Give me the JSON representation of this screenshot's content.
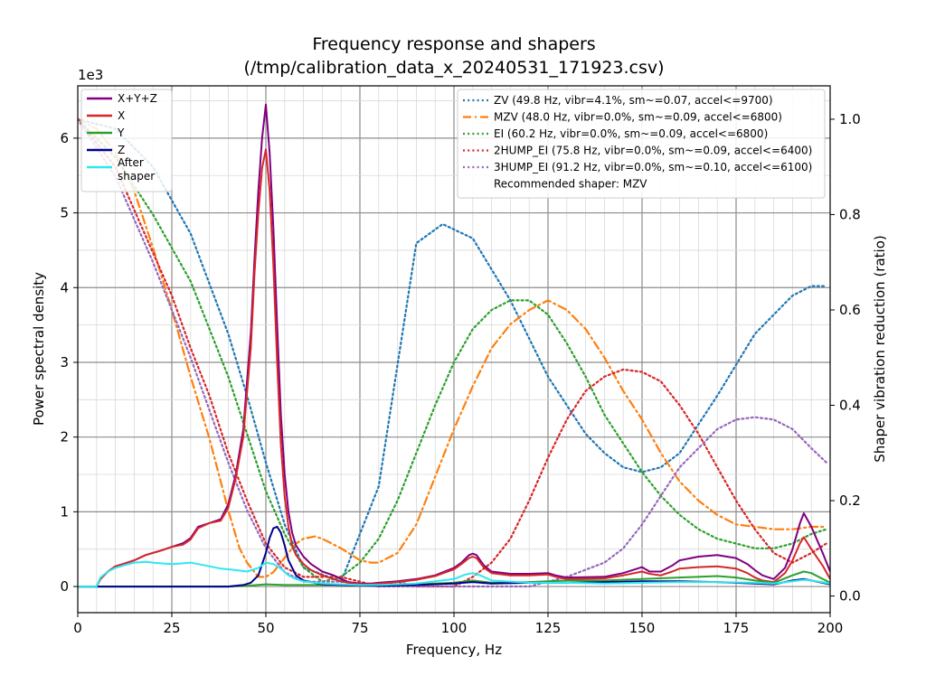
{
  "chart_data": {
    "type": "line",
    "title": "Frequency response and shapers",
    "subtitle": "(/tmp/calibration_data_x_20240531_171923.csv)",
    "xlabel": "Frequency, Hz",
    "ylabel": "Power spectral density",
    "ylabel_right": "Shaper vibration reduction (ratio)",
    "y_multiplier": "1e3",
    "xlim": [
      0,
      200
    ],
    "ylim": [
      -0.35,
      6.7
    ],
    "ylim_right": [
      -0.035,
      1.07
    ],
    "x_ticks": [
      0,
      25,
      50,
      75,
      100,
      125,
      150,
      175,
      200
    ],
    "y_ticks": [
      0,
      1,
      2,
      3,
      4,
      5,
      6
    ],
    "y_ticks_right": [
      0.0,
      0.2,
      0.4,
      0.6,
      0.8,
      1.0
    ],
    "grid": true,
    "legend_left_placement": "top-left",
    "legend_right_placement": "top-right",
    "recommended_note": "Recommended shaper: MZV",
    "psd_series": [
      {
        "name": "X+Y+Z",
        "color": "#800080",
        "x": [
          0,
          5,
          6,
          8,
          10,
          12,
          15,
          18,
          20,
          22,
          25,
          28,
          30,
          32,
          35,
          38,
          40,
          42,
          44,
          46,
          47,
          48,
          49,
          50,
          51,
          52,
          53,
          54,
          55,
          56,
          57,
          58,
          60,
          62,
          65,
          68,
          70,
          72,
          75,
          78,
          80,
          85,
          90,
          95,
          100,
          102,
          104,
          105,
          106,
          108,
          110,
          115,
          120,
          125,
          127,
          130,
          140,
          145,
          150,
          152,
          155,
          158,
          160,
          165,
          170,
          175,
          178,
          180,
          182,
          185,
          188,
          190,
          192,
          193,
          195,
          198,
          200
        ],
        "y": [
          0.0,
          0.0,
          0.1,
          0.2,
          0.27,
          0.3,
          0.35,
          0.42,
          0.45,
          0.48,
          0.53,
          0.58,
          0.65,
          0.8,
          0.85,
          0.9,
          1.1,
          1.5,
          2.1,
          3.4,
          4.4,
          5.3,
          6.0,
          6.45,
          5.8,
          4.8,
          3.5,
          2.3,
          1.5,
          1.0,
          0.72,
          0.55,
          0.4,
          0.3,
          0.2,
          0.15,
          0.1,
          0.06,
          0.04,
          0.04,
          0.05,
          0.07,
          0.1,
          0.15,
          0.25,
          0.32,
          0.42,
          0.44,
          0.42,
          0.28,
          0.2,
          0.17,
          0.17,
          0.18,
          0.15,
          0.12,
          0.13,
          0.18,
          0.26,
          0.2,
          0.2,
          0.28,
          0.35,
          0.4,
          0.42,
          0.38,
          0.3,
          0.22,
          0.15,
          0.1,
          0.25,
          0.5,
          0.85,
          0.98,
          0.8,
          0.45,
          0.2
        ]
      },
      {
        "name": "X",
        "color": "#d62728",
        "x": [
          0,
          5,
          6,
          8,
          10,
          12,
          15,
          18,
          20,
          22,
          25,
          28,
          30,
          32,
          35,
          38,
          40,
          42,
          44,
          46,
          47,
          48,
          49,
          50,
          51,
          52,
          53,
          54,
          55,
          56,
          57,
          58,
          60,
          62,
          65,
          68,
          70,
          72,
          75,
          78,
          80,
          85,
          90,
          95,
          100,
          102,
          104,
          105,
          106,
          108,
          110,
          115,
          120,
          125,
          127,
          130,
          140,
          145,
          150,
          152,
          155,
          158,
          160,
          165,
          170,
          175,
          178,
          180,
          182,
          185,
          188,
          190,
          192,
          193,
          195,
          198,
          200
        ],
        "y": [
          0.0,
          0.0,
          0.1,
          0.2,
          0.27,
          0.3,
          0.35,
          0.42,
          0.45,
          0.48,
          0.53,
          0.56,
          0.63,
          0.78,
          0.85,
          0.88,
          1.05,
          1.45,
          2.0,
          3.2,
          4.2,
          5.0,
          5.6,
          5.85,
          5.3,
          4.3,
          3.0,
          1.9,
          1.2,
          0.8,
          0.55,
          0.42,
          0.3,
          0.22,
          0.15,
          0.1,
          0.07,
          0.05,
          0.03,
          0.03,
          0.04,
          0.06,
          0.09,
          0.14,
          0.23,
          0.3,
          0.38,
          0.4,
          0.38,
          0.25,
          0.18,
          0.15,
          0.15,
          0.16,
          0.13,
          0.1,
          0.11,
          0.15,
          0.2,
          0.17,
          0.15,
          0.2,
          0.24,
          0.26,
          0.27,
          0.24,
          0.18,
          0.12,
          0.08,
          0.06,
          0.18,
          0.35,
          0.58,
          0.66,
          0.5,
          0.28,
          0.1
        ]
      },
      {
        "name": "Y",
        "color": "#2ca02c",
        "x": [
          0,
          10,
          20,
          30,
          40,
          45,
          50,
          55,
          60,
          70,
          80,
          90,
          100,
          105,
          110,
          120,
          130,
          140,
          150,
          160,
          170,
          175,
          180,
          185,
          190,
          193,
          195,
          200
        ],
        "y": [
          0,
          0,
          0,
          0,
          0,
          0.01,
          0.03,
          0.02,
          0.02,
          0.02,
          0.02,
          0.03,
          0.05,
          0.08,
          0.05,
          0.06,
          0.08,
          0.08,
          0.1,
          0.12,
          0.14,
          0.12,
          0.08,
          0.05,
          0.15,
          0.2,
          0.18,
          0.05
        ]
      },
      {
        "name": "Z",
        "color": "#00008b",
        "x": [
          0,
          10,
          20,
          30,
          40,
          44,
          46,
          48,
          50,
          51,
          52,
          53,
          54,
          55,
          56,
          58,
          60,
          65,
          70,
          80,
          90,
          100,
          105,
          110,
          120,
          130,
          140,
          150,
          160,
          170,
          180,
          185,
          190,
          193,
          195,
          200
        ],
        "y": [
          0,
          0,
          0,
          0,
          0,
          0.02,
          0.05,
          0.15,
          0.45,
          0.65,
          0.78,
          0.8,
          0.72,
          0.55,
          0.35,
          0.15,
          0.08,
          0.03,
          0.02,
          0.01,
          0.02,
          0.04,
          0.06,
          0.04,
          0.05,
          0.05,
          0.06,
          0.07,
          0.07,
          0.06,
          0.04,
          0.03,
          0.08,
          0.1,
          0.08,
          0.03
        ]
      },
      {
        "name": "After shaper",
        "color": "#2de8ef",
        "x": [
          0,
          5,
          6,
          8,
          10,
          12,
          15,
          18,
          20,
          22,
          25,
          28,
          30,
          32,
          35,
          38,
          40,
          42,
          45,
          48,
          50,
          52,
          54,
          56,
          58,
          60,
          65,
          70,
          75,
          80,
          90,
          100,
          103,
          105,
          107,
          110,
          120,
          130,
          140,
          150,
          160,
          170,
          180,
          185,
          190,
          193,
          195,
          200
        ],
        "y": [
          0.0,
          0.0,
          0.12,
          0.2,
          0.25,
          0.28,
          0.32,
          0.33,
          0.32,
          0.31,
          0.3,
          0.31,
          0.32,
          0.3,
          0.27,
          0.24,
          0.23,
          0.22,
          0.2,
          0.25,
          0.32,
          0.3,
          0.24,
          0.15,
          0.1,
          0.07,
          0.04,
          0.03,
          0.02,
          0.02,
          0.04,
          0.1,
          0.16,
          0.18,
          0.15,
          0.08,
          0.05,
          0.05,
          0.04,
          0.05,
          0.06,
          0.06,
          0.05,
          0.04,
          0.07,
          0.09,
          0.08,
          0.04
        ]
      }
    ],
    "shaper_series": [
      {
        "name": "ZV (49.8 Hz, vibr=4.1%, sm~=0.07, accel<=9700)",
        "color": "#1f77b4",
        "style": "dotted",
        "x": [
          0,
          10,
          20,
          30,
          40,
          45,
          50,
          55,
          60,
          70,
          80,
          90,
          97,
          105,
          115,
          125,
          135,
          140,
          145,
          150,
          155,
          160,
          170,
          180,
          190,
          195,
          199
        ],
        "y": [
          1.0,
          0.98,
          0.9,
          0.76,
          0.55,
          0.42,
          0.28,
          0.15,
          0.06,
          0.03,
          0.23,
          0.74,
          0.78,
          0.75,
          0.62,
          0.46,
          0.34,
          0.3,
          0.27,
          0.26,
          0.27,
          0.3,
          0.42,
          0.55,
          0.63,
          0.65,
          0.65
        ]
      },
      {
        "name": "MZV (48.0 Hz, vibr=0.0%, sm~=0.09, accel<=6800)",
        "color": "#ff7f0e",
        "style": "dashdot",
        "x": [
          0,
          5,
          10,
          15,
          20,
          25,
          30,
          35,
          40,
          43,
          45,
          48,
          50,
          52,
          55,
          58,
          60,
          63,
          65,
          70,
          75,
          78,
          80,
          85,
          90,
          95,
          100,
          105,
          110,
          115,
          120,
          125,
          130,
          135,
          140,
          145,
          150,
          155,
          160,
          165,
          170,
          175,
          180,
          185,
          190,
          195,
          199
        ],
        "y": [
          1.0,
          0.98,
          0.93,
          0.85,
          0.73,
          0.6,
          0.46,
          0.33,
          0.18,
          0.1,
          0.07,
          0.04,
          0.04,
          0.05,
          0.08,
          0.11,
          0.12,
          0.125,
          0.12,
          0.1,
          0.075,
          0.07,
          0.07,
          0.09,
          0.15,
          0.25,
          0.35,
          0.44,
          0.52,
          0.57,
          0.6,
          0.62,
          0.6,
          0.56,
          0.5,
          0.43,
          0.37,
          0.3,
          0.24,
          0.2,
          0.17,
          0.15,
          0.145,
          0.14,
          0.14,
          0.145,
          0.145
        ]
      },
      {
        "name": "EI (60.2 Hz, vibr=0.0%, sm~=0.09, accel<=6800)",
        "color": "#2ca02c",
        "style": "dotted",
        "x": [
          0,
          10,
          20,
          30,
          40,
          45,
          50,
          55,
          60,
          65,
          70,
          75,
          80,
          85,
          90,
          95,
          100,
          105,
          110,
          115,
          120,
          125,
          130,
          135,
          140,
          145,
          150,
          155,
          160,
          165,
          170,
          175,
          180,
          185,
          190,
          195,
          199
        ],
        "y": [
          1.0,
          0.92,
          0.8,
          0.66,
          0.46,
          0.34,
          0.22,
          0.13,
          0.06,
          0.03,
          0.04,
          0.07,
          0.12,
          0.2,
          0.3,
          0.4,
          0.49,
          0.56,
          0.6,
          0.62,
          0.62,
          0.59,
          0.53,
          0.46,
          0.38,
          0.32,
          0.26,
          0.21,
          0.17,
          0.14,
          0.12,
          0.11,
          0.1,
          0.1,
          0.11,
          0.13,
          0.14
        ]
      },
      {
        "name": "2HUMP_EI (75.8 Hz, vibr=0.0%, sm~=0.09, accel<=6400)",
        "color": "#d62728",
        "style": "dotted",
        "x": [
          0,
          10,
          20,
          25,
          30,
          35,
          40,
          45,
          50,
          55,
          60,
          65,
          70,
          75,
          80,
          85,
          90,
          95,
          100,
          105,
          110,
          115,
          120,
          125,
          130,
          135,
          140,
          145,
          150,
          155,
          160,
          165,
          170,
          175,
          180,
          185,
          190,
          195,
          199
        ],
        "y": [
          1.0,
          0.9,
          0.72,
          0.63,
          0.52,
          0.42,
          0.3,
          0.2,
          0.11,
          0.06,
          0.04,
          0.04,
          0.04,
          0.03,
          0.02,
          0.03,
          0.02,
          0.02,
          0.02,
          0.04,
          0.07,
          0.12,
          0.2,
          0.29,
          0.37,
          0.43,
          0.46,
          0.475,
          0.47,
          0.45,
          0.4,
          0.34,
          0.27,
          0.2,
          0.14,
          0.09,
          0.07,
          0.09,
          0.11
        ]
      },
      {
        "name": "3HUMP_EI (91.2 Hz, vibr=0.0%, sm~=0.10, accel<=6100)",
        "color": "#9467bd",
        "style": "dotted",
        "x": [
          0,
          10,
          20,
          25,
          30,
          35,
          40,
          45,
          50,
          55,
          60,
          70,
          80,
          90,
          100,
          110,
          120,
          130,
          140,
          145,
          150,
          155,
          160,
          165,
          170,
          175,
          180,
          185,
          190,
          195,
          199
        ],
        "y": [
          1.0,
          0.88,
          0.7,
          0.6,
          0.5,
          0.39,
          0.28,
          0.18,
          0.1,
          0.05,
          0.03,
          0.03,
          0.02,
          0.02,
          0.02,
          0.02,
          0.02,
          0.04,
          0.07,
          0.1,
          0.15,
          0.21,
          0.27,
          0.31,
          0.35,
          0.37,
          0.375,
          0.37,
          0.35,
          0.31,
          0.28
        ]
      }
    ]
  }
}
